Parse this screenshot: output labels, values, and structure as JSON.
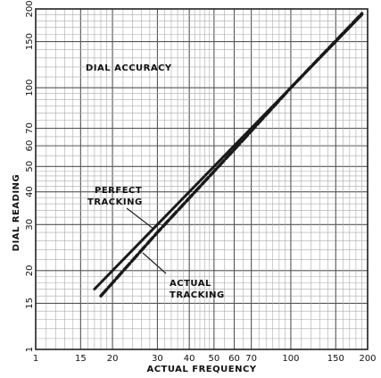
{
  "chart_data": {
    "type": "line",
    "title": "DIAL ACCURACY",
    "xlabel": "ACTUAL FREQUENCY",
    "ylabel": "DIAL READING",
    "xscale": "log",
    "yscale": "log",
    "xlim": [
      10,
      200
    ],
    "ylim": [
      10,
      200
    ],
    "x_ticks": [
      "1",
      "15",
      "20",
      "30",
      "40",
      "50",
      "60",
      "70",
      "100",
      "150",
      "200"
    ],
    "y_ticks": [
      "1",
      "15",
      "20",
      "30",
      "40",
      "50",
      "60",
      "70",
      "100",
      "150",
      "200"
    ],
    "grid": true,
    "series": [
      {
        "name": "PERFECT TRACKING",
        "x": [
          17,
          190
        ],
        "y": [
          17,
          190
        ]
      },
      {
        "name": "ACTUAL TRACKING",
        "x": [
          18,
          30,
          60,
          100,
          190
        ],
        "y": [
          16,
          28,
          58,
          100,
          192
        ]
      }
    ],
    "annotations": [
      {
        "lines": [
          "PERFECT",
          "TRACKING"
        ]
      },
      {
        "lines": [
          "ACTUAL",
          "TRACKING"
        ]
      }
    ]
  }
}
